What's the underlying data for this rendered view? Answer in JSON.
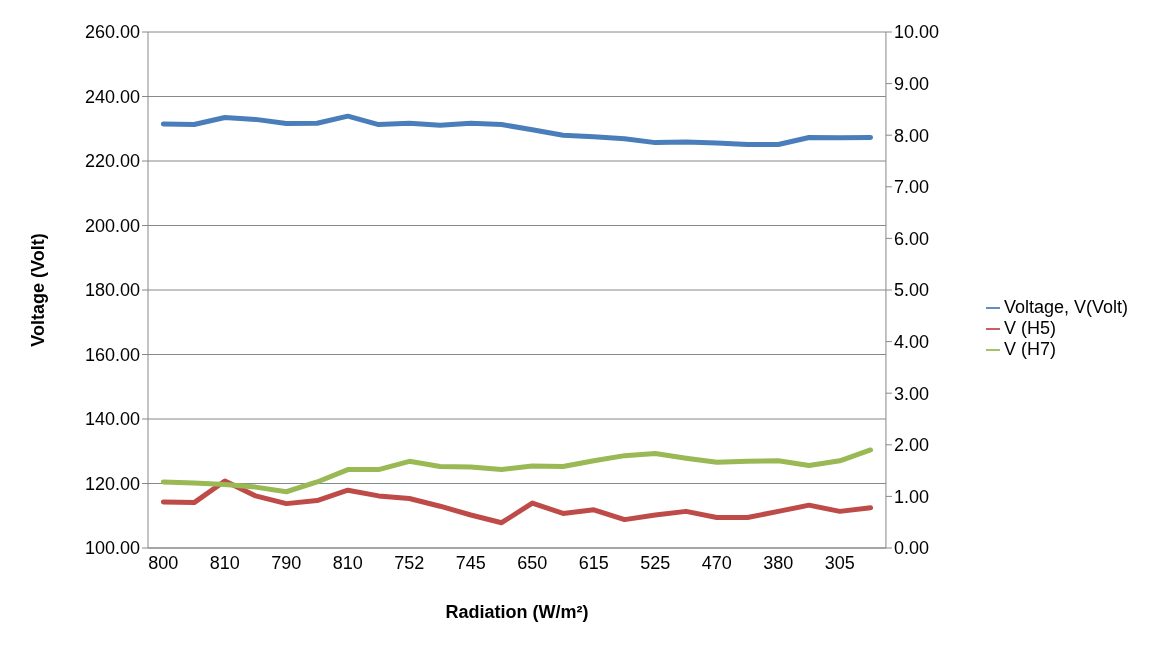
{
  "chart_data": {
    "type": "line",
    "xlabel": "Radiation (W/m²)",
    "ylabel": "Voltage (Volt)",
    "categories": [
      "800",
      null,
      "810",
      null,
      "790",
      null,
      "810",
      null,
      "752",
      null,
      "745",
      null,
      "650",
      null,
      "615",
      null,
      "525",
      null,
      "470",
      null,
      "380",
      null,
      "305",
      null
    ],
    "series": [
      {
        "name": "Voltage, V(Volt)",
        "color": "#4a7ebb",
        "values": [
          231.5,
          231.3,
          233.5,
          232.9,
          231.6,
          231.7,
          233.9,
          231.3,
          231.7,
          231.1,
          231.7,
          231.3,
          229.7,
          228.0,
          227.5,
          226.9,
          225.7,
          225.9,
          225.6,
          225.1,
          225.1,
          227.3,
          227.2,
          227.3
        ]
      },
      {
        "name": "V (H5)",
        "color": "#be4b48",
        "axis": "y2",
        "values": [
          0.89,
          0.88,
          1.3,
          1.01,
          0.86,
          0.92,
          1.12,
          1.01,
          0.96,
          0.81,
          0.64,
          0.49,
          0.87,
          0.67,
          0.74,
          0.55,
          0.64,
          0.71,
          0.59,
          0.59,
          0.71,
          0.83,
          0.71,
          0.78
        ]
      },
      {
        "name": "V (H7)",
        "color": "#98b954",
        "axis": "y2",
        "values": [
          1.28,
          1.26,
          1.23,
          1.18,
          1.09,
          1.28,
          1.52,
          1.52,
          1.68,
          1.58,
          1.57,
          1.52,
          1.59,
          1.58,
          1.69,
          1.79,
          1.83,
          1.74,
          1.66,
          1.68,
          1.69,
          1.6,
          1.69,
          1.9
        ]
      }
    ],
    "ylim": [
      100,
      260
    ],
    "yticks": [
      {
        "value": 100,
        "label": "100.00"
      },
      {
        "value": 120,
        "label": "120.00"
      },
      {
        "value": 140,
        "label": "140.00"
      },
      {
        "value": 160,
        "label": "160.00"
      },
      {
        "value": 180,
        "label": "180.00"
      },
      {
        "value": 200,
        "label": "200.00"
      },
      {
        "value": 220,
        "label": "220.00"
      },
      {
        "value": 240,
        "label": "240.00"
      },
      {
        "value": 260,
        "label": "260.00"
      }
    ],
    "y2lim": [
      0,
      10
    ],
    "y2ticks": [
      {
        "value": 0,
        "label": "0.00"
      },
      {
        "value": 1,
        "label": "1.00"
      },
      {
        "value": 2,
        "label": "2.00"
      },
      {
        "value": 3,
        "label": "3.00"
      },
      {
        "value": 4,
        "label": "4.00"
      },
      {
        "value": 5,
        "label": "5.00"
      },
      {
        "value": 6,
        "label": "6.00"
      },
      {
        "value": 7,
        "label": "7.00"
      },
      {
        "value": 8,
        "label": "8.00"
      },
      {
        "value": 9,
        "label": "9.00"
      },
      {
        "value": 10,
        "label": "10.00"
      }
    ],
    "grid": "y",
    "legend": "right",
    "marker": "none",
    "line_style": "solid"
  }
}
